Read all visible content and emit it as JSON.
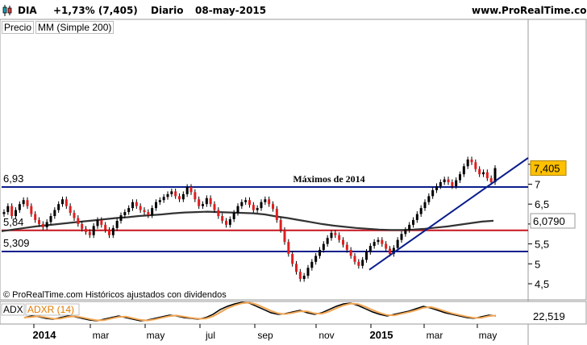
{
  "header": {
    "symbol": "DIA",
    "change": "+1,73% (7,405)",
    "period": "Diario",
    "date": "08-may-2015",
    "site": "www.ProRealTime.com"
  },
  "legend": {
    "price_label": "Precio",
    "ma_label": "MM (Simple 200)"
  },
  "footer_note": "© ProRealTime.com  Históricos ajustados con dividendos",
  "chart_data": [
    {
      "type": "candlestick",
      "title": "DIA",
      "y_ticks": [
        "7,5",
        "7",
        "6,5",
        "6",
        "5,5",
        "5",
        "4,5"
      ],
      "ylim": [
        4.4,
        7.75
      ],
      "x_ticks": [
        "2014",
        "mar",
        "may",
        "jul",
        "sep",
        "nov",
        "2015",
        "mar",
        "may"
      ],
      "last_price": "7,405",
      "ma_value": "6,0790",
      "levels": [
        {
          "value": 6.93,
          "label": "6,93",
          "color": "#0a1e8c"
        },
        {
          "value": 5.84,
          "label": "5,84",
          "color": "#c8141e"
        },
        {
          "value": 5.309,
          "label": "5,309",
          "color": "#0a1e8c"
        }
      ],
      "annotation": "Máximos de 2014",
      "close_series": [
        6.3,
        6.45,
        6.2,
        6.35,
        6.5,
        6.6,
        6.45,
        6.25,
        6.1,
        6.0,
        5.92,
        6.05,
        6.2,
        6.35,
        6.5,
        6.62,
        6.45,
        6.28,
        6.15,
        6.0,
        5.88,
        5.8,
        5.72,
        5.95,
        6.1,
        5.98,
        5.85,
        5.72,
        5.9,
        6.08,
        6.22,
        6.3,
        6.4,
        6.55,
        6.45,
        6.35,
        6.3,
        6.22,
        6.4,
        6.55,
        6.6,
        6.68,
        6.75,
        6.82,
        6.7,
        6.62,
        6.75,
        6.93,
        6.8,
        6.62,
        6.45,
        6.5,
        6.65,
        6.5,
        6.35,
        6.2,
        6.08,
        5.98,
        6.12,
        6.28,
        6.45,
        6.55,
        6.6,
        6.48,
        6.35,
        6.4,
        6.55,
        6.62,
        6.5,
        6.38,
        6.1,
        5.85,
        5.55,
        5.25,
        5.0,
        4.8,
        4.62,
        4.7,
        4.9,
        5.05,
        5.2,
        5.35,
        5.5,
        5.65,
        5.78,
        5.72,
        5.6,
        5.48,
        5.35,
        5.2,
        5.05,
        4.95,
        5.1,
        5.3,
        5.45,
        5.55,
        5.6,
        5.5,
        5.38,
        5.25,
        5.4,
        5.6,
        5.75,
        5.85,
        5.98,
        6.1,
        6.25,
        6.4,
        6.55,
        6.7,
        6.85,
        6.95,
        7.05,
        7.12,
        7.05,
        6.95,
        7.1,
        7.25,
        7.45,
        7.62,
        7.55,
        7.38,
        7.25,
        7.3,
        7.15,
        7.05,
        7.405
      ],
      "ma200_series": [
        5.82,
        5.86,
        5.9,
        5.94,
        5.97,
        6.0,
        6.03,
        6.06,
        6.09,
        6.12,
        6.15,
        6.17,
        6.2,
        6.22,
        6.24,
        6.27,
        6.29,
        6.3,
        6.31,
        6.3,
        6.29,
        6.28,
        6.27,
        6.24,
        6.19,
        6.15,
        6.1,
        6.05,
        6.0,
        5.96,
        5.93,
        5.9,
        5.88,
        5.86,
        5.85,
        5.85,
        5.86,
        5.88,
        5.91,
        5.94,
        5.98,
        6.02,
        6.06,
        6.08
      ],
      "trendline": {
        "from": [
          5.03,
          4.85
        ],
        "to": [
          7.62,
          7.62
        ]
      },
      "indicator": {
        "name": "ADX",
        "secondary": "ADXR (14)",
        "value": "22,519",
        "adx_series": [
          16,
          18,
          17,
          15,
          14,
          16,
          18,
          17,
          15,
          13,
          12,
          14,
          16,
          18,
          16,
          14,
          12,
          13,
          15,
          17,
          19,
          18,
          16,
          15,
          14,
          16,
          20,
          26,
          30,
          33,
          35,
          34,
          30,
          26,
          22,
          20,
          21,
          23,
          25,
          22,
          20,
          22,
          26,
          30,
          33,
          34,
          31,
          27,
          23,
          20,
          18,
          20,
          22,
          24,
          27,
          30,
          28,
          25,
          22,
          20,
          18,
          16,
          15,
          17,
          19,
          18
        ]
      }
    }
  ]
}
